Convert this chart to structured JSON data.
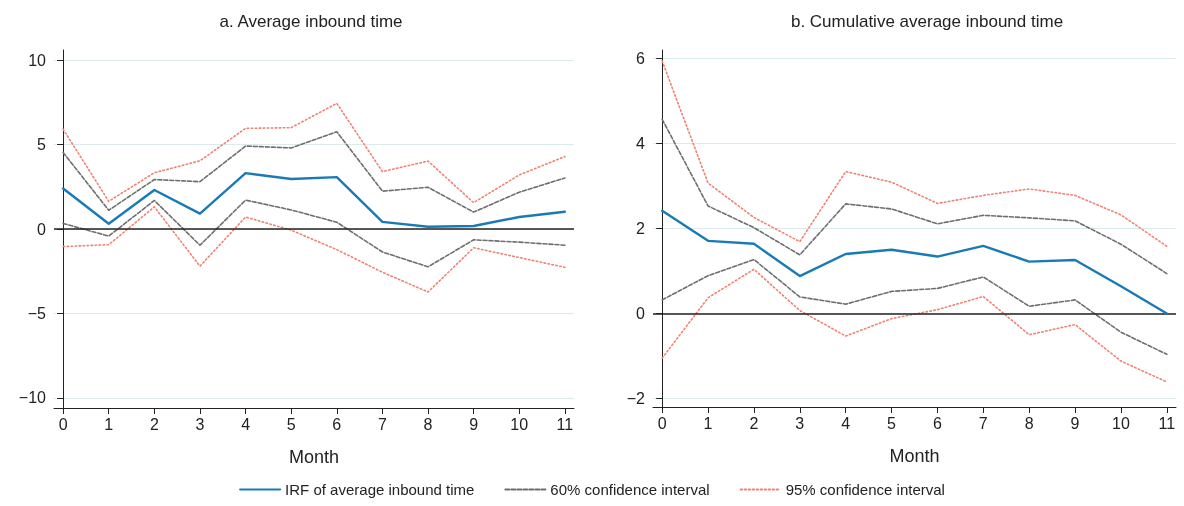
{
  "chart_data": [
    {
      "type": "line",
      "title": "a. Average inbound time",
      "xlabel": "Month",
      "x": [
        0,
        1,
        2,
        3,
        4,
        5,
        6,
        7,
        8,
        9,
        10,
        11
      ],
      "xlim": [
        -0.2,
        11.2
      ],
      "xticks": [
        0,
        1,
        2,
        3,
        4,
        5,
        6,
        7,
        8,
        9,
        10,
        11
      ],
      "ylim": [
        -10.6,
        10.6
      ],
      "yticks": [
        -10,
        -5,
        0,
        5,
        10
      ],
      "grid": "y",
      "legend": "bottom",
      "marker": "none",
      "ref_lines": [
        {
          "axis": "y",
          "value": 0,
          "color": "#222222",
          "line_style": "solid"
        }
      ],
      "series": [
        {
          "name": "IRF of average inbound time",
          "color": "#1a7ab5",
          "line_style": "solid",
          "values": [
            2.4,
            0.31,
            2.31,
            0.91,
            3.31,
            2.96,
            3.07,
            0.42,
            0.13,
            0.18,
            0.71,
            1.02
          ]
        },
        {
          "name": "60% confidence interval",
          "color": "#6e6e6e",
          "line_style": "dashed",
          "values": [
            4.53,
            1.11,
            2.93,
            2.8,
            4.91,
            4.8,
            5.76,
            2.24,
            2.47,
            1.0,
            2.18,
            3.02
          ]
        },
        {
          "color": "#6e6e6e",
          "line_style": "dashed",
          "values": [
            0.33,
            -0.42,
            1.69,
            -0.96,
            1.71,
            1.13,
            0.4,
            -1.36,
            -2.24,
            -0.64,
            -0.78,
            -0.96
          ]
        },
        {
          "name": "95% confidence interval",
          "color": "#f08272",
          "line_style": "dotted",
          "values": [
            5.91,
            1.64,
            3.33,
            4.04,
            5.96,
            6.0,
            7.44,
            3.4,
            4.02,
            1.56,
            3.2,
            4.29
          ]
        },
        {
          "color": "#f08272",
          "line_style": "dotted",
          "values": [
            -1.04,
            -0.93,
            1.31,
            -2.2,
            0.71,
            -0.07,
            -1.22,
            -2.56,
            -3.73,
            -1.11,
            -1.69,
            -2.27
          ]
        }
      ]
    },
    {
      "type": "line",
      "title": "b. Cumulative average inbound time",
      "xlabel": "Month",
      "x": [
        0,
        1,
        2,
        3,
        4,
        5,
        6,
        7,
        8,
        9,
        10,
        11
      ],
      "xlim": [
        -0.2,
        11.2
      ],
      "xticks": [
        0,
        1,
        2,
        3,
        4,
        5,
        6,
        7,
        8,
        9,
        10,
        11
      ],
      "ylim": [
        -2.2,
        6.2
      ],
      "yticks": [
        -2,
        0,
        2,
        4,
        6
      ],
      "grid": "y",
      "marker": "none",
      "ref_lines": [
        {
          "axis": "y",
          "value": 0,
          "color": "#222222",
          "line_style": "solid"
        }
      ],
      "series": [
        {
          "color": "#1a7ab5",
          "line_style": "solid",
          "values": [
            2.42,
            1.71,
            1.64,
            0.88,
            1.4,
            1.5,
            1.34,
            1.59,
            1.22,
            1.26,
            0.64,
            0
          ]
        },
        {
          "color": "#6e6e6e",
          "line_style": "dashed",
          "values": [
            4.57,
            2.53,
            2.02,
            1.38,
            2.58,
            2.46,
            2.11,
            2.31,
            2.25,
            2.18,
            1.63,
            0.94
          ]
        },
        {
          "color": "#6e6e6e",
          "line_style": "dashed",
          "values": [
            0.32,
            0.89,
            1.27,
            0.39,
            0.22,
            0.52,
            0.59,
            0.86,
            0.17,
            0.32,
            -0.44,
            -0.96
          ]
        },
        {
          "color": "#f08272",
          "line_style": "dotted",
          "values": [
            5.94,
            3.07,
            2.26,
            1.69,
            3.34,
            3.09,
            2.59,
            2.78,
            2.93,
            2.78,
            2.32,
            1.58
          ]
        },
        {
          "color": "#f08272",
          "line_style": "dotted",
          "values": [
            -1.05,
            0.37,
            1.04,
            0.07,
            -0.53,
            -0.12,
            0.09,
            0.4,
            -0.5,
            -0.26,
            -1.12,
            -1.61
          ]
        }
      ]
    }
  ]
}
